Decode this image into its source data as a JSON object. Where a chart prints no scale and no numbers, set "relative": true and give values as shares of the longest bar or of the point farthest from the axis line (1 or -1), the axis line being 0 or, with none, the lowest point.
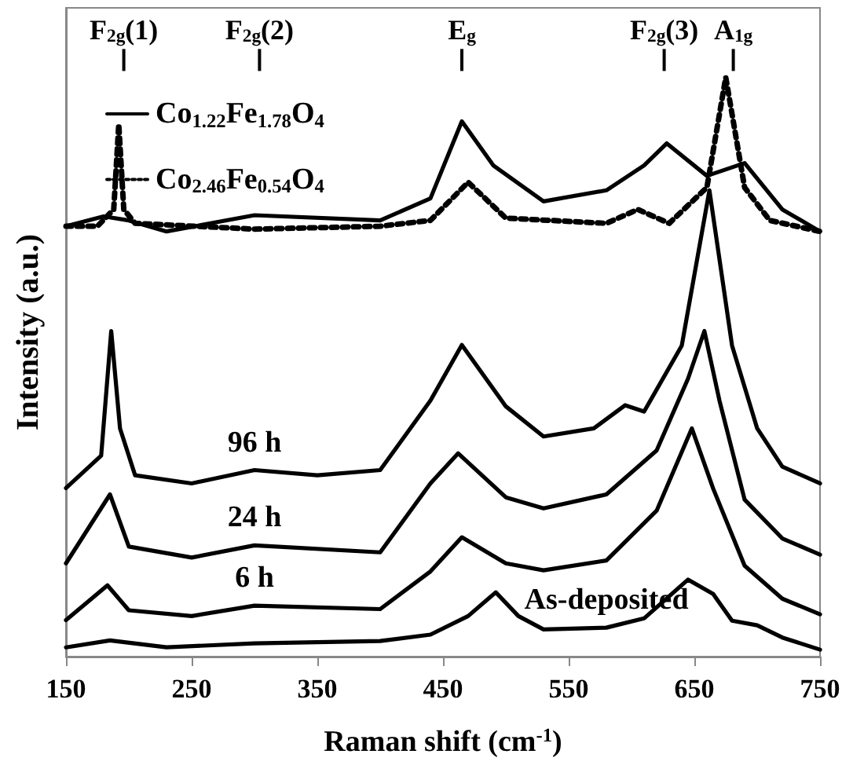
{
  "chart_data": {
    "type": "line",
    "relative": true,
    "xlabel": "Raman shift (cm$^{-1}$)",
    "ylabel": "Intensity (a.u.)",
    "xlim": [
      150,
      750
    ],
    "xticks": [
      150,
      250,
      350,
      450,
      550,
      650,
      750
    ],
    "grid": false,
    "legend": "top left",
    "marker": "none",
    "ref_lines": [
      {
        "axis": "x",
        "value": 196,
        "label": "F$_{2g}$(1)"
      },
      {
        "axis": "x",
        "value": 304,
        "label": "F$_{2g}$(2)"
      },
      {
        "axis": "x",
        "value": 465,
        "label": "E$_{g}$"
      },
      {
        "axis": "x",
        "value": 626,
        "label": "F$_{2g}$(3)"
      },
      {
        "axis": "x",
        "value": 681,
        "label": "A$_{1g}$"
      }
    ],
    "series": [
      {
        "name": "Co$_{1.22}$Fe$_{1.78}$O$_{4}$",
        "color": "#000000",
        "line_style": "solid",
        "x": [
          150,
          180,
          200,
          230,
          300,
          400,
          440,
          465,
          490,
          530,
          580,
          610,
          628,
          660,
          690,
          720,
          750
        ],
        "values": [
          0.743,
          0.76,
          0.753,
          0.734,
          0.762,
          0.753,
          0.791,
          0.924,
          0.848,
          0.786,
          0.805,
          0.848,
          0.886,
          0.83,
          0.852,
          0.772,
          0.734
        ]
      },
      {
        "name": "Co$_{2.46}$Fe$_{0.54}$O$_{4}$",
        "color": "#000000",
        "line_style": "dotted",
        "x": [
          150,
          175,
          188,
          192,
          196,
          205,
          300,
          400,
          440,
          470,
          500,
          580,
          605,
          630,
          660,
          675,
          690,
          710,
          750
        ],
        "values": [
          0.743,
          0.743,
          0.772,
          0.919,
          0.772,
          0.748,
          0.738,
          0.743,
          0.753,
          0.819,
          0.757,
          0.748,
          0.772,
          0.748,
          0.81,
          1,
          0.81,
          0.753,
          0.734
        ]
      },
      {
        "name": "96 h",
        "color": "#000000",
        "line_style": "solid",
        "x": [
          150,
          178,
          186,
          193,
          205,
          250,
          300,
          350,
          400,
          440,
          465,
          500,
          530,
          570,
          595,
          610,
          640,
          662,
          680,
          700,
          720,
          750
        ],
        "values": [
          0.291,
          0.347,
          0.562,
          0.394,
          0.313,
          0.299,
          0.322,
          0.313,
          0.322,
          0.442,
          0.538,
          0.432,
          0.38,
          0.394,
          0.434,
          0.423,
          0.537,
          0.805,
          0.537,
          0.394,
          0.328,
          0.299
        ]
      },
      {
        "name": "24 h",
        "color": "#000000",
        "line_style": "solid",
        "x": [
          150,
          185,
          200,
          250,
          300,
          400,
          440,
          462,
          500,
          530,
          580,
          620,
          645,
          658,
          670,
          690,
          720,
          750
        ],
        "values": [
          0.161,
          0.28,
          0.19,
          0.171,
          0.192,
          0.18,
          0.299,
          0.351,
          0.275,
          0.256,
          0.28,
          0.356,
          0.48,
          0.562,
          0.442,
          0.271,
          0.204,
          0.176
        ]
      },
      {
        "name": "6 h",
        "color": "#000000",
        "line_style": "solid",
        "x": [
          150,
          183,
          200,
          250,
          300,
          400,
          440,
          465,
          500,
          530,
          580,
          620,
          648,
          665,
          690,
          720,
          750
        ],
        "values": [
          0.063,
          0.123,
          0.08,
          0.07,
          0.088,
          0.082,
          0.147,
          0.206,
          0.161,
          0.149,
          0.166,
          0.252,
          0.394,
          0.29,
          0.157,
          0.1,
          0.073
        ]
      },
      {
        "name": "As-deposited",
        "color": "#000000",
        "line_style": "solid",
        "x": [
          150,
          185,
          230,
          300,
          400,
          440,
          470,
          492,
          510,
          530,
          580,
          610,
          645,
          665,
          680,
          700,
          720,
          750
        ],
        "values": [
          0.016,
          0.028,
          0.016,
          0.023,
          0.027,
          0.038,
          0.07,
          0.111,
          0.07,
          0.047,
          0.05,
          0.066,
          0.133,
          0.108,
          0.062,
          0.054,
          0.033,
          0.012
        ]
      }
    ]
  }
}
